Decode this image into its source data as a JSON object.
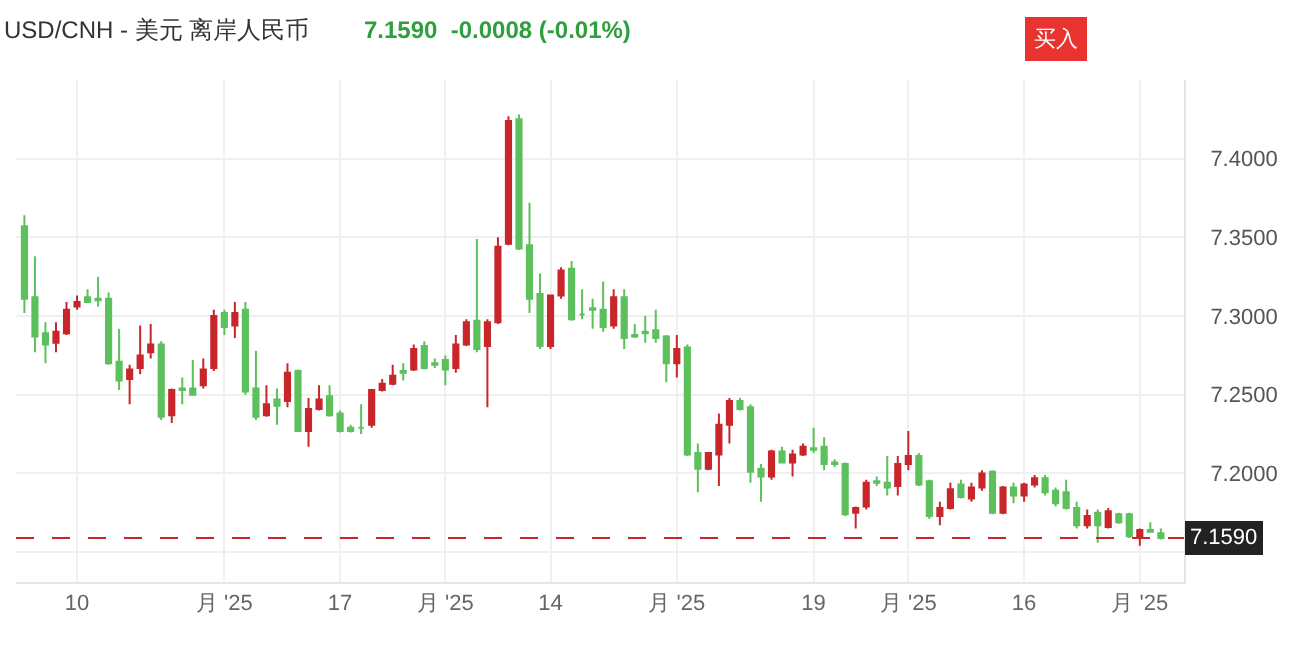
{
  "chart_data": {
    "type": "candlestick",
    "title": "USD/CNH - 美元 离岸人民币",
    "subtitle": "7.1590  -0.0008 (-0.01%)",
    "annotations": [
      "买入"
    ],
    "categories": [
      null,
      null,
      null,
      null,
      null,
      "10",
      null,
      null,
      null,
      null,
      null,
      null,
      null,
      null,
      null,
      null,
      null,
      null,
      null,
      "月 '25",
      null,
      null,
      null,
      null,
      null,
      null,
      null,
      null,
      null,
      null,
      "17",
      null,
      null,
      null,
      null,
      null,
      null,
      null,
      null,
      null,
      "月 '25",
      null,
      null,
      null,
      null,
      null,
      null,
      null,
      null,
      null,
      "14",
      null,
      null,
      null,
      null,
      null,
      null,
      null,
      null,
      null,
      null,
      null,
      "月 '25",
      null,
      null,
      null,
      null,
      null,
      null,
      null,
      null,
      null,
      null,
      null,
      null,
      "19",
      null,
      null,
      null,
      null,
      null,
      null,
      null,
      null,
      "月 '25",
      null,
      null,
      null,
      null,
      null,
      null,
      null,
      null,
      null,
      null,
      "16",
      null,
      null,
      null,
      null,
      null,
      null,
      null,
      null,
      null,
      null,
      "月 '25",
      null,
      null
    ],
    "ohlc": [
      [
        7.357,
        7.364,
        7.302,
        7.311
      ],
      [
        7.312,
        7.338,
        7.277,
        7.287
      ],
      [
        7.289,
        7.296,
        7.27,
        7.282
      ],
      [
        7.283,
        7.296,
        7.277,
        7.29
      ],
      [
        7.289,
        7.309,
        7.288,
        7.304
      ],
      [
        7.306,
        7.313,
        7.304,
        7.309
      ],
      [
        7.312,
        7.317,
        7.309,
        7.309
      ],
      [
        7.311,
        7.325,
        7.306,
        7.31
      ],
      [
        7.311,
        7.315,
        7.269,
        7.27
      ],
      [
        7.271,
        7.292,
        7.253,
        7.259
      ],
      [
        7.26,
        7.269,
        7.244,
        7.266
      ],
      [
        7.267,
        7.294,
        7.263,
        7.275
      ],
      [
        7.277,
        7.295,
        7.273,
        7.282
      ],
      [
        7.282,
        7.284,
        7.234,
        7.236
      ],
      [
        7.237,
        7.254,
        7.232,
        7.253
      ],
      [
        7.254,
        7.261,
        7.244,
        7.253
      ],
      [
        7.254,
        7.272,
        7.25,
        7.25
      ],
      [
        7.256,
        7.273,
        7.254,
        7.266
      ],
      [
        7.267,
        7.304,
        7.265,
        7.3
      ],
      [
        7.302,
        7.304,
        7.288,
        7.293
      ],
      [
        7.294,
        7.309,
        7.286,
        7.302
      ],
      [
        7.304,
        7.309,
        7.25,
        7.252
      ],
      [
        7.254,
        7.278,
        7.234,
        7.236
      ],
      [
        7.237,
        7.256,
        7.236,
        7.244
      ],
      [
        7.247,
        7.254,
        7.231,
        7.243
      ],
      [
        7.246,
        7.27,
        7.242,
        7.264
      ],
      [
        7.265,
        7.266,
        7.227,
        7.227
      ],
      [
        7.227,
        7.248,
        7.217,
        7.241
      ],
      [
        7.241,
        7.256,
        7.24,
        7.247
      ],
      [
        7.249,
        7.256,
        7.236,
        7.237
      ],
      [
        7.238,
        7.24,
        7.226,
        7.227
      ],
      [
        7.229,
        7.231,
        7.226,
        7.227
      ],
      [
        7.229,
        7.244,
        7.225,
        7.229
      ],
      [
        7.231,
        7.253,
        7.229,
        7.253
      ],
      [
        7.253,
        7.26,
        7.252,
        7.257
      ],
      [
        7.257,
        7.269,
        7.256,
        7.262
      ],
      [
        7.265,
        7.27,
        7.259,
        7.264
      ],
      [
        7.266,
        7.282,
        7.265,
        7.279
      ],
      [
        7.281,
        7.284,
        7.266,
        7.267
      ],
      [
        7.27,
        7.273,
        7.267,
        7.269
      ],
      [
        7.272,
        7.275,
        7.256,
        7.266
      ],
      [
        7.267,
        7.288,
        7.264,
        7.282
      ],
      [
        7.282,
        7.298,
        7.281,
        7.296
      ],
      [
        7.297,
        7.349,
        7.277,
        7.279
      ],
      [
        7.281,
        7.298,
        7.242,
        7.296
      ],
      [
        7.296,
        7.35,
        7.295,
        7.344
      ],
      [
        7.346,
        7.427,
        7.345,
        7.424
      ],
      [
        7.425,
        7.428,
        7.342,
        7.343
      ],
      [
        7.345,
        7.372,
        7.302,
        7.311
      ],
      [
        7.314,
        7.327,
        7.279,
        7.281
      ],
      [
        7.281,
        7.313,
        7.279,
        7.313
      ],
      [
        7.313,
        7.331,
        7.311,
        7.329
      ],
      [
        7.33,
        7.335,
        7.297,
        7.298
      ],
      [
        7.301,
        7.317,
        7.298,
        7.301
      ],
      [
        7.305,
        7.311,
        7.292,
        7.304
      ],
      [
        7.304,
        7.322,
        7.29,
        7.293
      ],
      [
        7.294,
        7.317,
        7.292,
        7.312
      ],
      [
        7.312,
        7.317,
        7.279,
        7.286
      ],
      [
        7.288,
        7.295,
        7.286,
        7.287
      ],
      [
        7.29,
        7.3,
        7.283,
        7.289
      ],
      [
        7.291,
        7.304,
        7.283,
        7.286
      ],
      [
        7.287,
        7.288,
        7.258,
        7.27
      ],
      [
        7.27,
        7.288,
        7.261,
        7.279
      ],
      [
        7.28,
        7.282,
        7.211,
        7.212
      ],
      [
        7.213,
        7.219,
        7.188,
        7.203
      ],
      [
        7.203,
        7.213,
        7.202,
        7.213
      ],
      [
        7.212,
        7.238,
        7.192,
        7.231
      ],
      [
        7.231,
        7.248,
        7.219,
        7.246
      ],
      [
        7.246,
        7.248,
        7.24,
        7.241
      ],
      [
        7.242,
        7.244,
        7.194,
        7.201
      ],
      [
        7.203,
        7.206,
        7.182,
        7.198
      ],
      [
        7.198,
        7.215,
        7.196,
        7.214
      ],
      [
        7.214,
        7.217,
        7.207,
        7.207
      ],
      [
        7.207,
        7.215,
        7.198,
        7.212
      ],
      [
        7.212,
        7.219,
        7.211,
        7.217
      ],
      [
        7.216,
        7.229,
        7.213,
        7.215
      ],
      [
        7.217,
        7.223,
        7.202,
        7.206
      ],
      [
        7.207,
        7.209,
        7.204,
        7.206
      ],
      [
        7.206,
        7.207,
        7.173,
        7.174
      ],
      [
        7.175,
        7.179,
        7.165,
        7.178
      ],
      [
        7.179,
        7.196,
        7.177,
        7.194
      ],
      [
        7.195,
        7.198,
        7.192,
        7.194
      ],
      [
        7.194,
        7.211,
        7.186,
        7.191
      ],
      [
        7.192,
        7.211,
        7.186,
        7.206
      ],
      [
        7.206,
        7.227,
        7.202,
        7.211
      ],
      [
        7.211,
        7.213,
        7.192,
        7.193
      ],
      [
        7.195,
        7.196,
        7.171,
        7.173
      ],
      [
        7.173,
        7.182,
        7.167,
        7.178
      ],
      [
        7.178,
        7.194,
        7.177,
        7.19
      ],
      [
        7.193,
        7.196,
        7.184,
        7.185
      ],
      [
        7.184,
        7.194,
        7.182,
        7.191
      ],
      [
        7.191,
        7.202,
        7.189,
        7.2
      ],
      [
        7.201,
        7.202,
        7.174,
        7.175
      ],
      [
        7.175,
        7.192,
        7.174,
        7.191
      ],
      [
        7.191,
        7.194,
        7.181,
        7.186
      ],
      [
        7.186,
        7.194,
        7.182,
        7.193
      ],
      [
        7.193,
        7.199,
        7.191,
        7.197
      ],
      [
        7.197,
        7.199,
        7.186,
        7.188
      ],
      [
        7.189,
        7.191,
        7.179,
        7.181
      ],
      [
        7.188,
        7.196,
        7.177,
        7.178
      ],
      [
        7.178,
        7.182,
        7.165,
        7.167
      ],
      [
        7.167,
        7.177,
        7.165,
        7.173
      ],
      [
        7.175,
        7.177,
        7.156,
        7.167
      ],
      [
        7.166,
        7.178,
        7.165,
        7.176
      ],
      [
        7.174,
        7.175,
        7.168,
        7.169
      ],
      [
        7.174,
        7.175,
        7.159,
        7.16
      ],
      [
        7.16,
        7.165,
        7.154,
        7.164
      ],
      [
        7.164,
        7.169,
        7.163,
        7.163
      ],
      [
        7.162,
        7.165,
        7.158,
        7.159
      ]
    ],
    "colors": [
      "#5cc05c",
      "#5cc05c",
      "#5cc05c",
      "#c8262b",
      "#c8262b",
      "#c8262b",
      "#5cc05c",
      "#5cc05c",
      "#5cc05c",
      "#5cc05c",
      "#c8262b",
      "#c8262b",
      "#c8262b",
      "#5cc05c",
      "#c8262b",
      "#5cc05c",
      "#5cc05c",
      "#c8262b",
      "#c8262b",
      "#5cc05c",
      "#c8262b",
      "#5cc05c",
      "#5cc05c",
      "#c8262b",
      "#5cc05c",
      "#c8262b",
      "#5cc05c",
      "#c8262b",
      "#c8262b",
      "#5cc05c",
      "#5cc05c",
      "#5cc05c",
      "#5cc05c",
      "#c8262b",
      "#c8262b",
      "#c8262b",
      "#5cc05c",
      "#c8262b",
      "#5cc05c",
      "#5cc05c",
      "#5cc05c",
      "#c8262b",
      "#c8262b",
      "#5cc05c",
      "#c8262b",
      "#c8262b",
      "#c8262b",
      "#5cc05c",
      "#5cc05c",
      "#5cc05c",
      "#c8262b",
      "#c8262b",
      "#5cc05c",
      "#5cc05c",
      "#5cc05c",
      "#5cc05c",
      "#c8262b",
      "#5cc05c",
      "#5cc05c",
      "#5cc05c",
      "#5cc05c",
      "#5cc05c",
      "#c8262b",
      "#5cc05c",
      "#5cc05c",
      "#c8262b",
      "#c8262b",
      "#c8262b",
      "#5cc05c",
      "#5cc05c",
      "#5cc05c",
      "#c8262b",
      "#5cc05c",
      "#c8262b",
      "#c8262b",
      "#5cc05c",
      "#5cc05c",
      "#5cc05c",
      "#5cc05c",
      "#c8262b",
      "#c8262b",
      "#5cc05c",
      "#5cc05c",
      "#c8262b",
      "#c8262b",
      "#5cc05c",
      "#5cc05c",
      "#c8262b",
      "#c8262b",
      "#5cc05c",
      "#c8262b",
      "#c8262b",
      "#5cc05c",
      "#c8262b",
      "#5cc05c",
      "#c8262b",
      "#c8262b",
      "#5cc05c",
      "#5cc05c",
      "#5cc05c",
      "#5cc05c",
      "#c8262b",
      "#5cc05c",
      "#c8262b",
      "#5cc05c",
      "#5cc05c",
      "#c8262b",
      "#5cc05c",
      "#5cc05c"
    ],
    "ylim": [
      7.131,
      7.45
    ],
    "yticks": [
      {
        "value": 7.15,
        "label": null
      },
      {
        "value": 7.2,
        "label": "7.2000"
      },
      {
        "value": 7.25,
        "label": "7.2500"
      },
      {
        "value": 7.3,
        "label": "7.3000"
      },
      {
        "value": 7.35,
        "label": "7.3500"
      },
      {
        "value": 7.4,
        "label": "7.4000"
      }
    ],
    "ref_lines": [
      {
        "axis": "y",
        "value": 7.159,
        "label": "7.1590",
        "color": "#c8262b",
        "line_style": "dashed"
      }
    ],
    "grid": true
  }
}
